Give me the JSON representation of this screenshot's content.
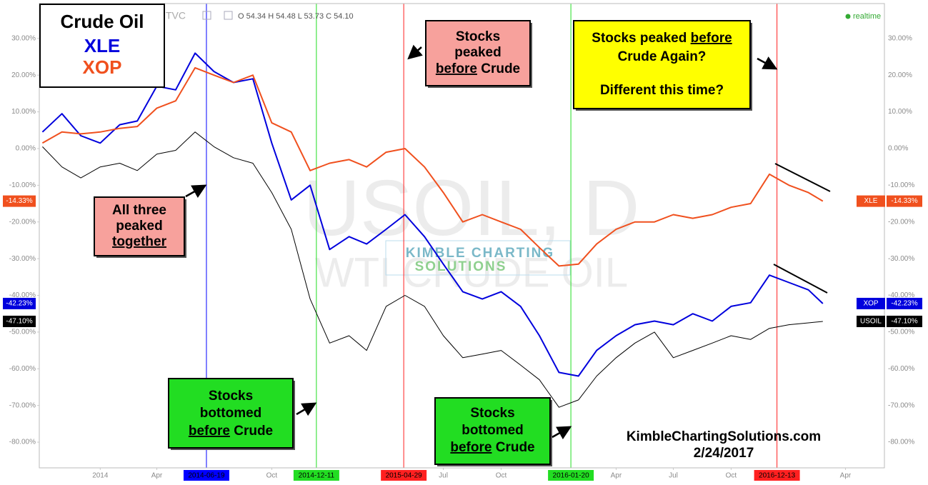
{
  "chart_data": {
    "type": "line",
    "header": {
      "symbol": "TVC",
      "ohlc": "O 54.34 H 54.48 L 53.73 C 54.10",
      "status": "realtime"
    },
    "watermark": {
      "symbol": "USOIL, D",
      "name": "WTI CRUDE OIL"
    },
    "logo": [
      "KIMBLE CHARTING",
      "SOLUTIONS"
    ],
    "signature": [
      "KimbleChartingSolutions.com",
      "2/24/2017"
    ],
    "x": [
      "2013-10",
      "2013-11",
      "2013-12",
      "2014-01",
      "2014-02",
      "2014-03",
      "2014-04",
      "2014-05",
      "2014-06",
      "2014-07",
      "2014-08",
      "2014-09",
      "2014-10",
      "2014-11",
      "2014-12",
      "2015-01",
      "2015-02",
      "2015-03",
      "2015-04",
      "2015-05",
      "2015-06",
      "2015-07",
      "2015-08",
      "2015-09",
      "2015-10",
      "2015-11",
      "2015-12",
      "2016-01",
      "2016-02",
      "2016-03",
      "2016-04",
      "2016-05",
      "2016-06",
      "2016-07",
      "2016-08",
      "2016-09",
      "2016-10",
      "2016-11",
      "2016-12",
      "2017-01",
      "2017-02",
      "2017-02-24"
    ],
    "xlim": [
      "2013-09-26",
      "2017-06-02"
    ],
    "xticks": [
      {
        "value": "2014-01",
        "label": "2014"
      },
      {
        "value": "2014-04",
        "label": "Apr"
      },
      {
        "value": "2014-10",
        "label": "Oct"
      },
      {
        "value": "2015-07",
        "label": "Jul"
      },
      {
        "value": "2015-10",
        "label": "Oct"
      },
      {
        "value": "2016-04",
        "label": "Apr"
      },
      {
        "value": "2016-07",
        "label": "Jul"
      },
      {
        "value": "2016-10",
        "label": "Oct"
      },
      {
        "value": "2017-04",
        "label": "Apr"
      }
    ],
    "ylim": [
      -87,
      39.5
    ],
    "yticks": [
      {
        "value": 30,
        "label": "30.00%"
      },
      {
        "value": 20,
        "label": "20.00%"
      },
      {
        "value": 10,
        "label": "10.00%"
      },
      {
        "value": 0,
        "label": "0.00%"
      },
      {
        "value": -10,
        "label": "-10.00%"
      },
      {
        "value": -20,
        "label": "-20.00%"
      },
      {
        "value": -30,
        "label": "-30.00%"
      },
      {
        "value": -40,
        "label": "-40.00%"
      },
      {
        "value": -50,
        "label": "-50.00%"
      },
      {
        "value": -60,
        "label": "-60.00%"
      },
      {
        "value": -70,
        "label": "-70.00%"
      },
      {
        "value": -80,
        "label": "-80.00%"
      }
    ],
    "grid": false,
    "series": [
      {
        "name": "Crude Oil",
        "badge": "USOIL",
        "color": "#000000",
        "last_label": "-47.10%",
        "values": [
          0.5,
          -5,
          -8,
          -5,
          -4,
          -6,
          -1.5,
          -0.5,
          4.5,
          0.5,
          -2.5,
          -4,
          -12,
          -22,
          -41,
          -53,
          -51,
          -55,
          -43,
          -40,
          -43,
          -51,
          -57,
          -56,
          -55,
          -59,
          -63,
          -70.5,
          -68.5,
          -62,
          -57,
          -53,
          -50,
          -57,
          -55,
          -53,
          -51,
          -52,
          -49,
          -48,
          -47.5,
          -47.1
        ]
      },
      {
        "name": "XLE",
        "badge": "XOP",
        "color": "#0000dd",
        "last_label": "-42.23%",
        "values": [
          4.5,
          9.5,
          3.5,
          1.5,
          6.5,
          7.5,
          17,
          16,
          26,
          21,
          18,
          19,
          1.5,
          -14,
          -10,
          -27.5,
          -24,
          -26,
          -22,
          -18,
          -24,
          -31.5,
          -39,
          -41,
          -39,
          -43,
          -51,
          -61,
          -62,
          -55,
          -51,
          -48,
          -47,
          -48,
          -45,
          -47,
          -43,
          -42,
          -34.5,
          -36.5,
          -38.5,
          -42.23
        ]
      },
      {
        "name": "XOP",
        "badge": "XLE",
        "color": "#f0501e",
        "last_label": "-14.33%",
        "values": [
          1.5,
          4.5,
          4,
          4.5,
          5.5,
          6,
          11,
          13,
          22,
          20,
          18,
          20,
          7,
          4.5,
          -6,
          -4,
          -3,
          -5,
          -1,
          0,
          -5,
          -12,
          -20,
          -18,
          -20,
          -22,
          -27,
          -32,
          -31.5,
          -26,
          -22,
          -20,
          -20,
          -18,
          -19,
          -18,
          -16,
          -15,
          -7,
          -10,
          -12,
          -14.33
        ]
      }
    ],
    "markers": [
      {
        "x": "2014-06-19",
        "color": "#0000ff"
      },
      {
        "x": "2014-12-11",
        "color": "#22dd22"
      },
      {
        "x": "2015-04-29",
        "color": "#ff2020"
      },
      {
        "x": "2016-01-20",
        "color": "#22dd22"
      },
      {
        "x": "2016-12-13",
        "color": "#ff2020"
      }
    ],
    "annotations": [
      {
        "color": "#f7a19c",
        "lines": [
          [
            {
              "text": "Stocks"
            }
          ],
          [
            {
              "text": "peaked"
            }
          ],
          [
            {
              "text": "before",
              "underline": true
            },
            {
              "text": " Crude"
            }
          ]
        ]
      },
      {
        "color": "#ffff00",
        "lines": [
          [
            {
              "text": "Stocks peaked "
            },
            {
              "text": "before",
              "underline": true
            }
          ],
          [
            {
              "text": "Crude Again?"
            }
          ],
          [
            {
              "text": "Different this time?"
            }
          ]
        ]
      },
      {
        "color": "#f7a19c",
        "lines": [
          [
            {
              "text": "All three"
            }
          ],
          [
            {
              "text": "peaked"
            }
          ],
          [
            {
              "text": "together",
              "underline": true
            }
          ]
        ]
      },
      {
        "color": "#22dd22",
        "lines": [
          [
            {
              "text": "Stocks"
            }
          ],
          [
            {
              "text": "bottomed"
            }
          ],
          [
            {
              "text": "before",
              "underline": true
            },
            {
              "text": " Crude"
            }
          ]
        ]
      },
      {
        "color": "#22dd22",
        "lines": [
          [
            {
              "text": "Stocks"
            }
          ],
          [
            {
              "text": "bottomed"
            }
          ],
          [
            {
              "text": "before",
              "underline": true
            },
            {
              "text": " Crude"
            }
          ]
        ]
      }
    ]
  }
}
